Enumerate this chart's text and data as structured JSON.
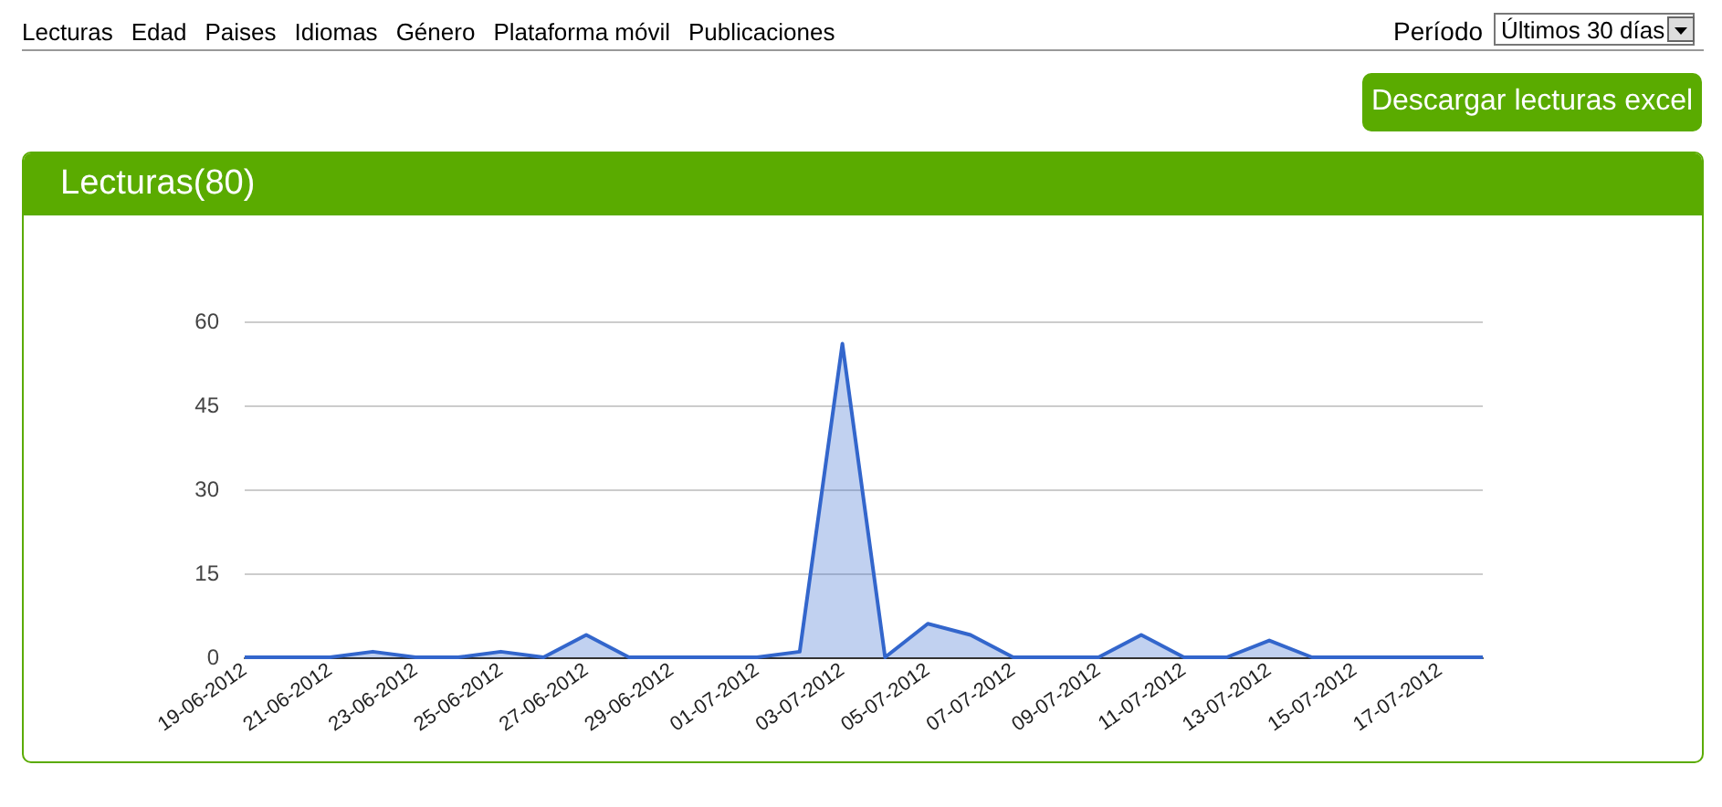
{
  "chart_data": {
    "type": "area",
    "title": "Lecturas(80)",
    "annotations": [
      "Lecturas",
      "Edad",
      "Paises",
      "Idiomas",
      "Género",
      "Plataforma móvil",
      "Publicaciones",
      "Período",
      "Últimos 30 días",
      "Descargar lecturas excel"
    ],
    "categories": [
      "19-06-2012",
      null,
      "21-06-2012",
      null,
      "23-06-2012",
      null,
      "25-06-2012",
      null,
      "27-06-2012",
      null,
      "29-06-2012",
      null,
      "01-07-2012",
      null,
      "03-07-2012",
      null,
      "05-07-2012",
      null,
      "07-07-2012",
      null,
      "09-07-2012",
      null,
      "11-07-2012",
      null,
      "13-07-2012",
      null,
      "15-07-2012",
      null,
      "17-07-2012",
      null
    ],
    "series": [
      {
        "color": "#3366cc",
        "values": [
          0,
          0,
          0,
          1,
          0,
          0,
          1,
          0,
          4,
          0,
          0,
          0,
          0,
          1,
          56,
          0,
          6,
          4,
          0,
          0,
          0,
          4,
          0,
          0,
          3,
          0,
          0,
          0,
          0,
          0
        ]
      }
    ],
    "ylim": [
      0,
      60
    ],
    "yticks": [
      0,
      15,
      30,
      45,
      60
    ],
    "grid": "y",
    "marker": "none"
  }
}
